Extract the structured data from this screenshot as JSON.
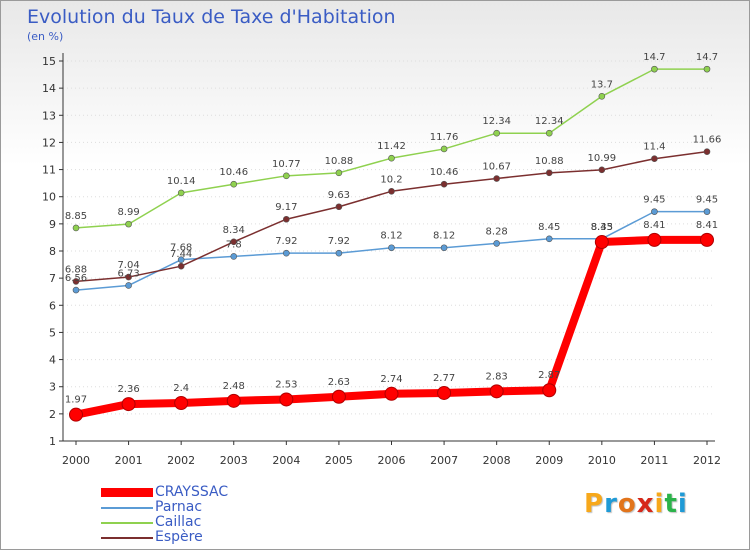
{
  "colors": {
    "frame_border": "#9a9a9a",
    "title": "#3a5cc4",
    "axis": "#333333",
    "grid": "#dddddd"
  },
  "logo": {
    "text": "Proxiti",
    "colors": [
      "#f7a81b",
      "#1f9ad6",
      "#e2741b",
      "#d6281a",
      "#f7a81b",
      "#2bb34a",
      "#1f9ad6"
    ]
  },
  "chart_data": {
    "type": "line",
    "title": "Evolution du Taux de Taxe d'Habitation",
    "subtitle": "(en %)",
    "xlabel": "",
    "ylabel": "",
    "x": [
      "2000",
      "2001",
      "2002",
      "2003",
      "2004",
      "2005",
      "2006",
      "2007",
      "2008",
      "2009",
      "2010",
      "2011",
      "2012"
    ],
    "ylim": [
      1,
      15
    ],
    "yticks": [
      "1",
      "2",
      "3",
      "4",
      "5",
      "6",
      "7",
      "8",
      "9",
      "10",
      "11",
      "12",
      "13",
      "14",
      "15"
    ],
    "grid": true,
    "legend_position": "bottom-left",
    "series": [
      {
        "name": "CRAYSSAC",
        "color": "#ff0000",
        "values": [
          1.97,
          2.36,
          2.4,
          2.48,
          2.53,
          2.63,
          2.74,
          2.77,
          2.83,
          2.87,
          8.33,
          8.41,
          8.41
        ]
      },
      {
        "name": "Parnac",
        "color": "#5b9bd5",
        "values": [
          6.56,
          6.73,
          7.68,
          7.8,
          7.92,
          7.92,
          8.12,
          8.12,
          8.28,
          8.45,
          8.45,
          9.45,
          9.45
        ]
      },
      {
        "name": "Caillac",
        "color": "#8fd14f",
        "values": [
          8.85,
          8.99,
          10.14,
          10.46,
          10.77,
          10.88,
          11.42,
          11.76,
          12.34,
          12.34,
          13.7,
          14.7,
          14.7
        ]
      },
      {
        "name": "Espère",
        "color": "#7b2f2f",
        "values": [
          6.88,
          7.04,
          7.44,
          8.34,
          9.17,
          9.63,
          10.2,
          10.46,
          10.67,
          10.88,
          10.99,
          11.4,
          11.66
        ]
      }
    ]
  }
}
